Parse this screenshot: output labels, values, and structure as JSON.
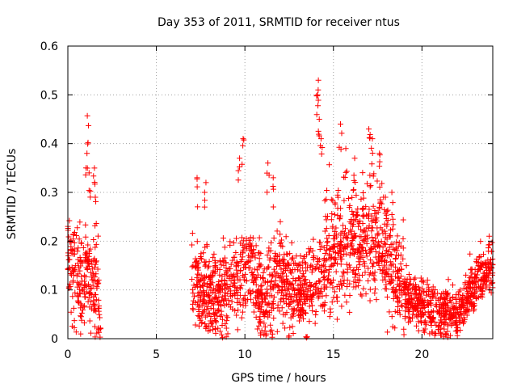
{
  "chart_data": {
    "type": "scatter",
    "title": "Day 353 of 2011, SRMTID for receiver ntus",
    "xlabel": "GPS time / hours",
    "ylabel": "SRMTID / TECUs",
    "xlim": [
      0,
      24
    ],
    "ylim": [
      0,
      0.6
    ],
    "xticks": [
      0,
      5,
      10,
      15,
      20
    ],
    "yticks": [
      0,
      0.1,
      0.2,
      0.3,
      0.4,
      0.5,
      0.6
    ],
    "grid": true,
    "marker": "+",
    "color": "#ff0000",
    "series": [
      {
        "name": "SRMTID",
        "segments": [
          {
            "start": 0.0,
            "end": 1.85,
            "base": [
              [
                0,
                0.16
              ],
              [
                0.4,
                0.15
              ],
              [
                0.8,
                0.1
              ],
              [
                1.1,
                0.14
              ],
              [
                1.4,
                0.12
              ],
              [
                1.85,
                0.05
              ]
            ],
            "spread": 0.07
          },
          {
            "start": 7.0,
            "end": 14.5,
            "base": [
              [
                7,
                0.12
              ],
              [
                8,
                0.09
              ],
              [
                9,
                0.1
              ],
              [
                9.8,
                0.14
              ],
              [
                10.4,
                0.14
              ],
              [
                11,
                0.08
              ],
              [
                11.5,
                0.1
              ],
              [
                12,
                0.14
              ],
              [
                12.5,
                0.1
              ],
              [
                13.5,
                0.09
              ],
              [
                14.2,
                0.12
              ],
              [
                14.5,
                0.12
              ]
            ],
            "spread": 0.06
          },
          {
            "start": 14.5,
            "end": 19.0,
            "base": [
              [
                14.5,
                0.18
              ],
              [
                15.2,
                0.2
              ],
              [
                16,
                0.18
              ],
              [
                17,
                0.22
              ],
              [
                17.6,
                0.2
              ],
              [
                18.2,
                0.15
              ],
              [
                19,
                0.11
              ]
            ],
            "spread": 0.08
          },
          {
            "start": 19.0,
            "end": 24.0,
            "base": [
              [
                19,
                0.09
              ],
              [
                20,
                0.07
              ],
              [
                21,
                0.05
              ],
              [
                22,
                0.05
              ],
              [
                22.6,
                0.09
              ],
              [
                23.3,
                0.13
              ],
              [
                24,
                0.14
              ]
            ],
            "spread": 0.035
          }
        ],
        "peaks": [
          [
            1.1,
            0.457
          ],
          [
            1.08,
            0.38
          ],
          [
            1.2,
            0.34
          ],
          [
            1.5,
            0.35
          ],
          [
            1.55,
            0.29
          ],
          [
            7.3,
            0.33
          ],
          [
            7.8,
            0.32
          ],
          [
            9.9,
            0.41
          ],
          [
            9.7,
            0.37
          ],
          [
            11.3,
            0.36
          ],
          [
            11.6,
            0.33
          ],
          [
            12.0,
            0.24
          ],
          [
            14.15,
            0.53
          ],
          [
            14.1,
            0.5
          ],
          [
            14.2,
            0.45
          ],
          [
            14.3,
            0.41
          ],
          [
            15.4,
            0.44
          ],
          [
            15.7,
            0.39
          ],
          [
            16.2,
            0.37
          ],
          [
            17.0,
            0.43
          ],
          [
            17.2,
            0.41
          ],
          [
            17.6,
            0.38
          ],
          [
            18.3,
            0.3
          ],
          [
            23.8,
            0.21
          ]
        ],
        "count_per_hour": 120
      }
    ]
  }
}
